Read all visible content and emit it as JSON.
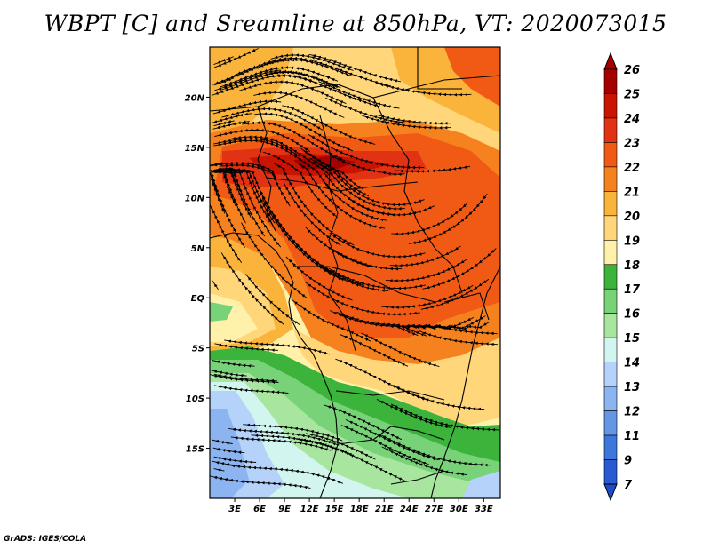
{
  "title": "WBPT [C] and Sreamline at 850hPa, VT: 2020073015",
  "footer": "GrADS: IGES/COLA",
  "map": {
    "lon_range": [
      0,
      35
    ],
    "lat_range": [
      -20,
      25
    ],
    "lon_ticks": [
      "3E",
      "6E",
      "9E",
      "12E",
      "15E",
      "18E",
      "21E",
      "24E",
      "27E",
      "30E",
      "33E"
    ],
    "lat_ticks": [
      "20N",
      "15N",
      "10N",
      "5N",
      "EQ",
      "5S",
      "10S",
      "15S"
    ],
    "field": "Wet-bulb potential temperature",
    "overlay": "Streamlines",
    "features": {
      "warm_core": "Saharan/Sahel band 10N-17N, values 23-25",
      "cool_region": "Southern Africa and southeast Atlantic, values 12-17"
    }
  },
  "colorbar": {
    "labels": [
      "26",
      "25",
      "24",
      "23",
      "22",
      "21",
      "20",
      "19",
      "18",
      "17",
      "16",
      "15",
      "14",
      "13",
      "12",
      "11",
      "9",
      "7"
    ],
    "colors": [
      "#a50000",
      "#c81400",
      "#e23214",
      "#f05a14",
      "#f5821e",
      "#fab43c",
      "#ffd67a",
      "#fff0aa",
      "#3cb43c",
      "#78d278",
      "#a8e6a0",
      "#d2f5f0",
      "#b4d2fa",
      "#8cb4f0",
      "#6496e6",
      "#3c78dc",
      "#285ad2"
    ]
  }
}
